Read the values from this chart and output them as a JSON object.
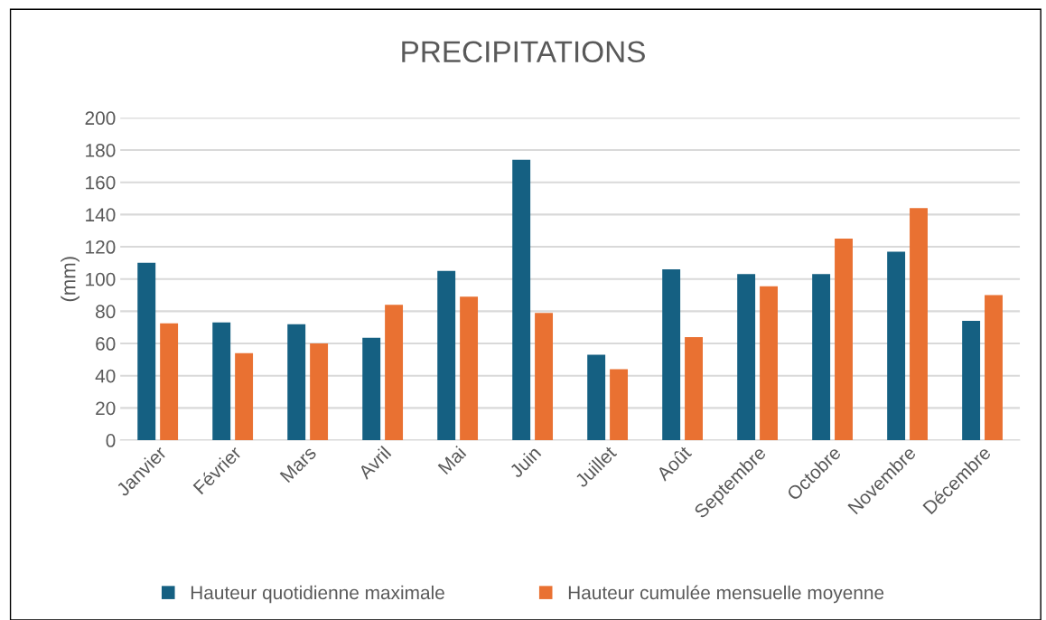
{
  "chart_data": {
    "type": "bar",
    "title": "PRECIPITATIONS",
    "ylabel": "(mm)",
    "categories": [
      "Janvier",
      "Février",
      "Mars",
      "Avril",
      "Mai",
      "Juin",
      "Juillet",
      "Août",
      "Septembre",
      "Octobre",
      "Novembre",
      "Décembre"
    ],
    "series": [
      {
        "name": "Hauteur quotidienne maximale",
        "color": "#156082",
        "values": [
          110,
          73,
          72,
          63.5,
          105,
          174,
          53,
          106,
          103,
          103,
          117,
          74
        ]
      },
      {
        "name": "Hauteur cumulée mensuelle moyenne",
        "color": "#e97132",
        "values": [
          72.5,
          54,
          60,
          84,
          89,
          79,
          44,
          64,
          95.5,
          125,
          144,
          90
        ]
      }
    ],
    "ylim": [
      0,
      200
    ],
    "yticks": [
      0,
      20,
      40,
      60,
      80,
      100,
      120,
      140,
      160,
      180,
      200
    ],
    "grid": "y",
    "legend": "bottom"
  }
}
